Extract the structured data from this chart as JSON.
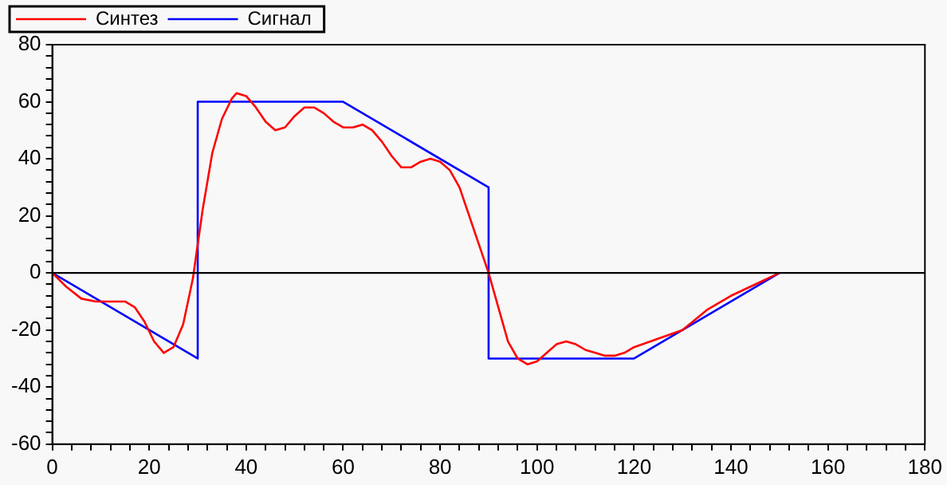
{
  "chart_data": {
    "type": "line",
    "legend": "top left",
    "grid": false,
    "xlim": [
      0,
      180
    ],
    "ylim": [
      -60,
      80
    ],
    "xticks": [
      0,
      {
        "value": 4,
        "label": null
      },
      {
        "value": 8,
        "label": null
      },
      {
        "value": 12,
        "label": null
      },
      {
        "value": 16,
        "label": null
      },
      20,
      {
        "value": 24,
        "label": null
      },
      {
        "value": 28,
        "label": null
      },
      {
        "value": 32,
        "label": null
      },
      {
        "value": 36,
        "label": null
      },
      40,
      {
        "value": 44,
        "label": null
      },
      {
        "value": 48,
        "label": null
      },
      {
        "value": 52,
        "label": null
      },
      {
        "value": 56,
        "label": null
      },
      60,
      {
        "value": 64,
        "label": null
      },
      {
        "value": 68,
        "label": null
      },
      {
        "value": 72,
        "label": null
      },
      {
        "value": 76,
        "label": null
      },
      80,
      {
        "value": 84,
        "label": null
      },
      {
        "value": 88,
        "label": null
      },
      {
        "value": 92,
        "label": null
      },
      {
        "value": 96,
        "label": null
      },
      100,
      {
        "value": 104,
        "label": null
      },
      {
        "value": 108,
        "label": null
      },
      {
        "value": 112,
        "label": null
      },
      {
        "value": 116,
        "label": null
      },
      120,
      {
        "value": 124,
        "label": null
      },
      {
        "value": 128,
        "label": null
      },
      {
        "value": 132,
        "label": null
      },
      {
        "value": 136,
        "label": null
      },
      140,
      {
        "value": 144,
        "label": null
      },
      {
        "value": 148,
        "label": null
      },
      {
        "value": 152,
        "label": null
      },
      {
        "value": 156,
        "label": null
      },
      160,
      {
        "value": 164,
        "label": null
      },
      {
        "value": 168,
        "label": null
      },
      {
        "value": 172,
        "label": null
      },
      {
        "value": 176,
        "label": null
      },
      180
    ],
    "yticks": [
      -60,
      {
        "value": -56,
        "label": null
      },
      {
        "value": -52,
        "label": null
      },
      {
        "value": -48,
        "label": null
      },
      {
        "value": -44,
        "label": null
      },
      -40,
      {
        "value": -36,
        "label": null
      },
      {
        "value": -32,
        "label": null
      },
      {
        "value": -28,
        "label": null
      },
      {
        "value": -24,
        "label": null
      },
      -20,
      {
        "value": -16,
        "label": null
      },
      {
        "value": -12,
        "label": null
      },
      {
        "value": -8,
        "label": null
      },
      {
        "value": -4,
        "label": null
      },
      0,
      {
        "value": 4,
        "label": null
      },
      {
        "value": 8,
        "label": null
      },
      {
        "value": 12,
        "label": null
      },
      {
        "value": 16,
        "label": null
      },
      20,
      {
        "value": 24,
        "label": null
      },
      {
        "value": 28,
        "label": null
      },
      {
        "value": 32,
        "label": null
      },
      {
        "value": 36,
        "label": null
      },
      40,
      {
        "value": 44,
        "label": null
      },
      {
        "value": 48,
        "label": null
      },
      {
        "value": 52,
        "label": null
      },
      {
        "value": 56,
        "label": null
      },
      60,
      {
        "value": 64,
        "label": null
      },
      {
        "value": 68,
        "label": null
      },
      {
        "value": 72,
        "label": null
      },
      {
        "value": 76,
        "label": null
      },
      80
    ],
    "ref_lines": [
      {
        "axis": "y",
        "value": 0,
        "color": "#000000"
      }
    ],
    "series": [
      {
        "name": "Синтез",
        "color": "#ff0000",
        "x": [
          0,
          3,
          6,
          9,
          12,
          15,
          17,
          19,
          21,
          23,
          25,
          27,
          29,
          31,
          33,
          35,
          37,
          38,
          40,
          42,
          44,
          46,
          48,
          50,
          52,
          54,
          56,
          58,
          60,
          62,
          64,
          66,
          68,
          70,
          72,
          74,
          76,
          78,
          80,
          82,
          84,
          86,
          88,
          90,
          92,
          94,
          96,
          98,
          100,
          102,
          104,
          106,
          108,
          110,
          112,
          114,
          116,
          118,
          120,
          125,
          130,
          135,
          140,
          145,
          150
        ],
        "values": [
          0,
          -5,
          -9,
          -10,
          -10,
          -10,
          -12,
          -17,
          -24,
          -28,
          -26,
          -18,
          -2,
          22,
          42,
          54,
          61,
          63,
          62,
          58,
          53,
          50,
          51,
          55,
          58,
          58,
          56,
          53,
          51,
          51,
          52,
          50,
          46,
          41,
          37,
          37,
          39,
          40,
          39,
          36,
          30,
          20,
          10,
          0,
          -12,
          -24,
          -30,
          -32,
          -31,
          -28,
          -25,
          -24,
          -25,
          -27,
          -28,
          -29,
          -29,
          -28,
          -26,
          -23,
          -20,
          -13,
          -8,
          -4,
          0
        ]
      },
      {
        "name": "Сигнал",
        "color": "#0000ff",
        "x": [
          0,
          30,
          30,
          60,
          90,
          90,
          120,
          150
        ],
        "values": [
          0,
          -30,
          60,
          60,
          30,
          -30,
          -30,
          0
        ]
      }
    ]
  }
}
